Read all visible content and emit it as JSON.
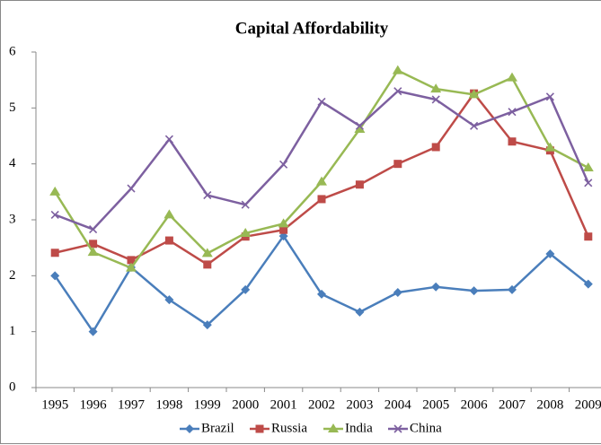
{
  "chart_data": {
    "type": "line",
    "title": "Capital Affordability",
    "categories": [
      "1995",
      "1996",
      "1997",
      "1998",
      "1999",
      "2000",
      "2001",
      "2002",
      "2003",
      "2004",
      "2005",
      "2006",
      "2007",
      "2008",
      "2009"
    ],
    "series": [
      {
        "name": "Brazil",
        "color": "#4a7ebb",
        "marker": "diamond",
        "values": [
          2.0,
          1.0,
          2.15,
          1.57,
          1.12,
          1.75,
          2.71,
          1.67,
          1.35,
          1.7,
          1.8,
          1.73,
          1.75,
          2.39,
          1.85
        ]
      },
      {
        "name": "Russia",
        "color": "#be4b48",
        "marker": "square",
        "values": [
          2.41,
          2.57,
          2.28,
          2.63,
          2.2,
          2.7,
          2.82,
          3.37,
          3.63,
          4.0,
          4.3,
          5.26,
          4.4,
          4.24,
          2.7
        ]
      },
      {
        "name": "India",
        "color": "#98b954",
        "marker": "triangle",
        "values": [
          3.5,
          2.42,
          2.14,
          3.09,
          2.4,
          2.76,
          2.93,
          3.68,
          4.62,
          5.67,
          5.34,
          5.24,
          5.54,
          4.29,
          3.93
        ]
      },
      {
        "name": "China",
        "color": "#7d60a0",
        "marker": "x",
        "values": [
          3.09,
          2.83,
          3.56,
          4.44,
          3.44,
          3.27,
          3.99,
          5.11,
          4.68,
          5.3,
          5.15,
          4.68,
          4.93,
          5.2,
          3.66
        ]
      }
    ],
    "ylim": [
      0,
      6
    ],
    "yticks": [
      0,
      1,
      2,
      3,
      4,
      5,
      6
    ],
    "grid": false,
    "legend": "bottom"
  }
}
